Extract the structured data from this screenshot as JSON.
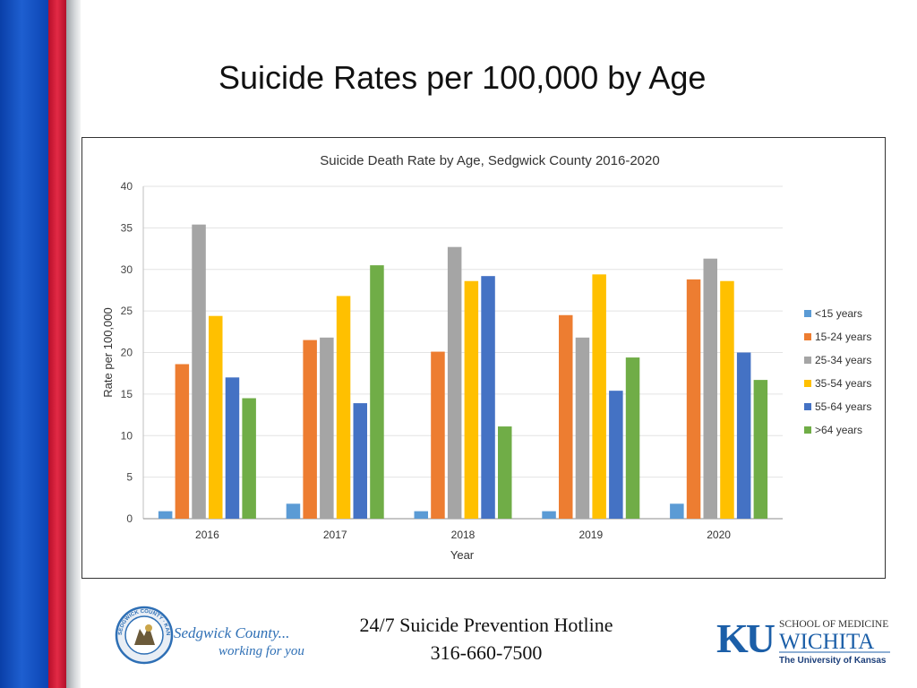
{
  "slide": {
    "title": "Suicide Rates per 100,000 by Age"
  },
  "footer": {
    "hotline_line1": "24/7 Suicide Prevention Hotline",
    "hotline_line2": "316-660-7500"
  },
  "sedgwick_logo": {
    "seal_text": "SEDGWICK COUNTY · KANSAS",
    "name": "Sedgwick County...",
    "tagline": "working for you"
  },
  "ku_logo": {
    "letters": "KU",
    "line1": "SCHOOL OF MEDICINE",
    "line2": "WICHITA",
    "line3": "The University of Kansas"
  },
  "colors": {
    "stripe_blue": "#1a55c4",
    "stripe_red": "#d81f3b",
    "ku_blue": "#1c5fa8",
    "sedgwick_blue": "#2e6fb5"
  },
  "chart_data": {
    "type": "bar",
    "title": "Suicide Death Rate by Age, Sedgwick County 2016-2020",
    "xlabel": "Year",
    "ylabel": "Rate per 100,000",
    "ylim": [
      0,
      40
    ],
    "yticks": [
      0,
      5,
      10,
      15,
      20,
      25,
      30,
      35,
      40
    ],
    "grid": true,
    "legend_position": "right",
    "categories": [
      "2016",
      "2017",
      "2018",
      "2019",
      "2020"
    ],
    "series": [
      {
        "name": "<15 years",
        "color": "#5b9bd5",
        "values": [
          0.9,
          1.8,
          0.9,
          0.9,
          1.8
        ]
      },
      {
        "name": "15-24 years",
        "color": "#ed7d31",
        "values": [
          18.6,
          21.5,
          20.1,
          24.5,
          28.8
        ]
      },
      {
        "name": "25-34 years",
        "color": "#a5a5a5",
        "values": [
          35.4,
          21.8,
          32.7,
          21.8,
          31.3
        ]
      },
      {
        "name": "35-54 years",
        "color": "#ffc000",
        "values": [
          24.4,
          26.8,
          28.6,
          29.4,
          28.6
        ]
      },
      {
        "name": "55-64 years",
        "color": "#4472c4",
        "values": [
          17.0,
          13.9,
          29.2,
          15.4,
          20.0
        ]
      },
      {
        "name": ">64 years",
        "color": "#70ad47",
        "values": [
          14.5,
          30.5,
          11.1,
          19.4,
          16.7
        ]
      }
    ]
  }
}
